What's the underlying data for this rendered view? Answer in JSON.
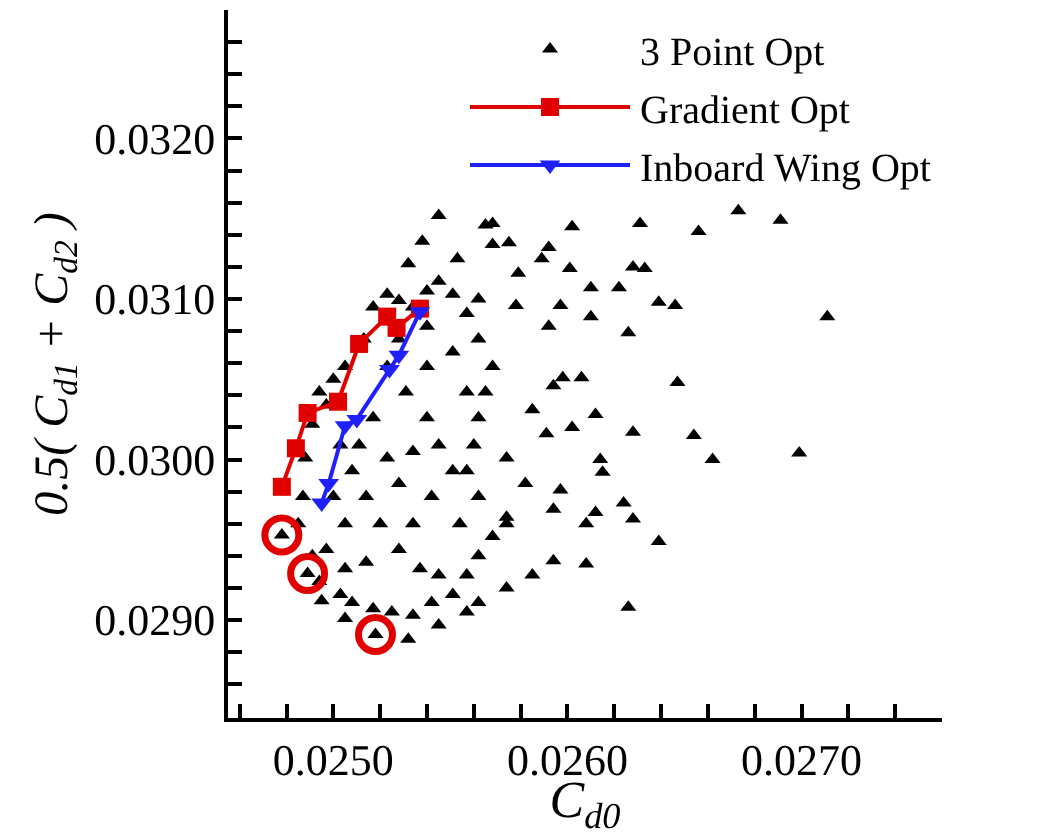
{
  "chart_data": {
    "type": "scatter",
    "xlabel": "C$_{d0}$",
    "ylabel": "0.5( C$_{d1}$ + C$_{d2}$ )",
    "xlim": [
      0.02455,
      0.0276
    ],
    "ylim": [
      0.02839,
      0.0328
    ],
    "xticks": [
      {
        "value": 0.0246,
        "label": null
      },
      {
        "value": 0.0248,
        "label": null
      },
      {
        "value": 0.025,
        "label": "0.0250"
      },
      {
        "value": 0.0252,
        "label": null
      },
      {
        "value": 0.0254,
        "label": null
      },
      {
        "value": 0.0256,
        "label": null
      },
      {
        "value": 0.0258,
        "label": null
      },
      {
        "value": 0.026,
        "label": "0.0260"
      },
      {
        "value": 0.0262,
        "label": null
      },
      {
        "value": 0.0264,
        "label": null
      },
      {
        "value": 0.0266,
        "label": null
      },
      {
        "value": 0.0268,
        "label": null
      },
      {
        "value": 0.027,
        "label": "0.0270"
      },
      {
        "value": 0.0272,
        "label": null
      },
      {
        "value": 0.0274,
        "label": null
      }
    ],
    "yticks": [
      {
        "value": 0.0286,
        "label": null
      },
      {
        "value": 0.0288,
        "label": null
      },
      {
        "value": 0.029,
        "label": "0.0290"
      },
      {
        "value": 0.0292,
        "label": null
      },
      {
        "value": 0.0294,
        "label": null
      },
      {
        "value": 0.0296,
        "label": null
      },
      {
        "value": 0.0298,
        "label": null
      },
      {
        "value": 0.03,
        "label": "0.0300"
      },
      {
        "value": 0.0302,
        "label": null
      },
      {
        "value": 0.0304,
        "label": null
      },
      {
        "value": 0.0306,
        "label": null
      },
      {
        "value": 0.0308,
        "label": null
      },
      {
        "value": 0.031,
        "label": "0.0310"
      },
      {
        "value": 0.0312,
        "label": null
      },
      {
        "value": 0.0314,
        "label": null
      },
      {
        "value": 0.0316,
        "label": null
      },
      {
        "value": 0.0318,
        "label": null
      },
      {
        "value": 0.032,
        "label": "0.0320"
      },
      {
        "value": 0.0322,
        "label": null
      },
      {
        "value": 0.0324,
        "label": null
      },
      {
        "value": 0.0326,
        "label": null
      }
    ],
    "legend": "top right",
    "series": [
      {
        "name": "3 Point Opt",
        "marker": "triangle",
        "color": "#000000",
        "x": [
          0.02545,
          0.02568,
          0.02565,
          0.02575,
          0.02568,
          0.02602,
          0.02631,
          0.02656,
          0.02673,
          0.02691,
          0.02711,
          0.02699,
          0.02662,
          0.02654,
          0.02647,
          0.02639,
          0.02626,
          0.02628,
          0.02624,
          0.02628,
          0.02614,
          0.02615,
          0.02608,
          0.02612,
          0.02602,
          0.02612,
          0.02606,
          0.02598,
          0.02597,
          0.02626,
          0.02622,
          0.02646,
          0.02639,
          0.02628,
          0.02633,
          0.0261,
          0.0261,
          0.02601,
          0.02597,
          0.02592,
          0.02589,
          0.02579,
          0.02578,
          0.02562,
          0.02553,
          0.02538,
          0.02532,
          0.02592,
          0.02594,
          0.02585,
          0.02591,
          0.02582,
          0.02594,
          0.02585,
          0.02574,
          0.02562,
          0.02545,
          0.02532,
          0.02505,
          0.02495,
          0.02557,
          0.02594,
          0.02574,
          0.02608,
          0.02568,
          0.02574,
          0.02478,
          0.02489,
          0.02518,
          0.02494,
          0.02491,
          0.02488,
          0.02487,
          0.02485,
          0.02491,
          0.02494,
          0.02503,
          0.02508,
          0.02517,
          0.02525,
          0.02534,
          0.02542,
          0.02551,
          0.02557,
          0.02562,
          0.02568,
          0.02574,
          0.02562,
          0.02557,
          0.0256,
          0.02562,
          0.02565,
          0.02562,
          0.02557,
          0.02551,
          0.02545,
          0.0254,
          0.02534,
          0.02528,
          0.02523,
          0.02517,
          0.02513,
          0.02505,
          0.025,
          0.02497,
          0.02503,
          0.02508,
          0.02514,
          0.0252,
          0.02528,
          0.02537,
          0.02545,
          0.02534,
          0.02542,
          0.02551,
          0.02545,
          0.0254,
          0.02531,
          0.02523,
          0.02528,
          0.0254,
          0.02551,
          0.02557,
          0.02517,
          0.02511,
          0.02523,
          0.02528,
          0.02505,
          0.025,
          0.02497,
          0.02514,
          0.02554,
          0.0254,
          0.02534,
          0.02505
        ],
        "values": [
          0.03152,
          0.03147,
          0.03146,
          0.03135,
          0.03134,
          0.03145,
          0.03147,
          0.03142,
          0.03155,
          0.03149,
          0.03089,
          0.03004,
          0.03,
          0.03015,
          0.03048,
          0.02949,
          0.02908,
          0.03017,
          0.02973,
          0.02963,
          0.03,
          0.02992,
          0.02935,
          0.02967,
          0.0302,
          0.03028,
          0.03051,
          0.03051,
          0.02981,
          0.03079,
          0.03107,
          0.03096,
          0.03098,
          0.0312,
          0.03119,
          0.03107,
          0.03089,
          0.03119,
          0.03096,
          0.03132,
          0.03125,
          0.03116,
          0.03096,
          0.031,
          0.03125,
          0.03136,
          0.03122,
          0.03083,
          0.03046,
          0.03031,
          0.03016,
          0.02985,
          0.02969,
          0.02928,
          0.0292,
          0.02911,
          0.02897,
          0.02888,
          0.02901,
          0.02912,
          0.02905,
          0.02937,
          0.0296,
          0.0296,
          0.03058,
          0.03001,
          0.02953,
          0.02929,
          0.02891,
          0.03042,
          0.03022,
          0.03001,
          0.02977,
          0.0296,
          0.0294,
          0.02924,
          0.02916,
          0.02911,
          0.02907,
          0.02905,
          0.02903,
          0.02911,
          0.02916,
          0.02928,
          0.0294,
          0.02952,
          0.02964,
          0.02977,
          0.02993,
          0.03009,
          0.03026,
          0.03042,
          0.03075,
          0.03091,
          0.03103,
          0.03111,
          0.03105,
          0.03095,
          0.03099,
          0.03103,
          0.03095,
          0.03075,
          0.03058,
          0.0305,
          0.03034,
          0.03009,
          0.02993,
          0.02977,
          0.0296,
          0.02944,
          0.02932,
          0.02928,
          0.0296,
          0.02977,
          0.02993,
          0.03009,
          0.03026,
          0.03042,
          0.03058,
          0.03075,
          0.03083,
          0.03067,
          0.03042,
          0.03026,
          0.03009,
          0.03001,
          0.02985,
          0.0296,
          0.02977,
          0.02944,
          0.02936,
          0.0296,
          0.03058,
          0.03005,
          0.02932
        ]
      },
      {
        "name": "Gradient Opt",
        "type": "line",
        "marker": "square",
        "line_style": "solid",
        "color": "#e00000",
        "x": [
          0.02478,
          0.02484,
          0.02489,
          0.02502,
          0.02511,
          0.02523,
          0.02527,
          0.02537
        ],
        "values": [
          0.02983,
          0.03007,
          0.03029,
          0.03036,
          0.03072,
          0.03089,
          0.03082,
          0.03094
        ]
      },
      {
        "name": "Inboard Wing Opt",
        "type": "line",
        "marker": "triangle",
        "line_style": "solid",
        "color": "#2020ff",
        "x": [
          0.02495,
          0.02498,
          0.02505,
          0.0251,
          0.02524,
          0.02528,
          0.02537
        ],
        "values": [
          0.02973,
          0.02985,
          0.03021,
          0.03025,
          0.03056,
          0.03065,
          0.03092
        ]
      },
      {
        "marker": "circle",
        "color": "#e00000",
        "x": [
          0.02478,
          0.02489,
          0.02518
        ],
        "values": [
          0.02953,
          0.02929,
          0.02891
        ]
      }
    ]
  }
}
